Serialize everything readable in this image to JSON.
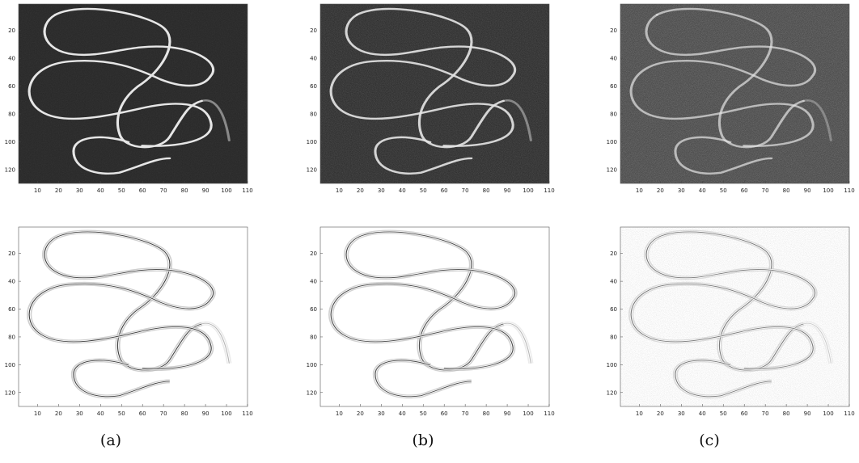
{
  "figure": {
    "panels": [
      {
        "id": "a",
        "caption": "(a)"
      },
      {
        "id": "b",
        "caption": "(b)"
      },
      {
        "id": "c",
        "caption": "(c)"
      }
    ],
    "rows": [
      {
        "id": "noisy-images",
        "content": "noisy grayscale image of a looped curve"
      },
      {
        "id": "enhanced-images",
        "content": "curve response map (dark on white)"
      }
    ],
    "axes": {
      "x_ticks": [
        "10",
        "20",
        "30",
        "40",
        "50",
        "60",
        "70",
        "80",
        "90",
        "100",
        "110"
      ],
      "y_ticks": [
        "20",
        "40",
        "60",
        "80",
        "100",
        "120"
      ],
      "xlim": [
        1,
        110
      ],
      "ylim": [
        1,
        130
      ]
    },
    "colors": {
      "dark_background": "#262626",
      "light_background": "#ffffff",
      "bright_curve": "#e6e6e6",
      "dark_curve": "#2a2a2a"
    }
  }
}
